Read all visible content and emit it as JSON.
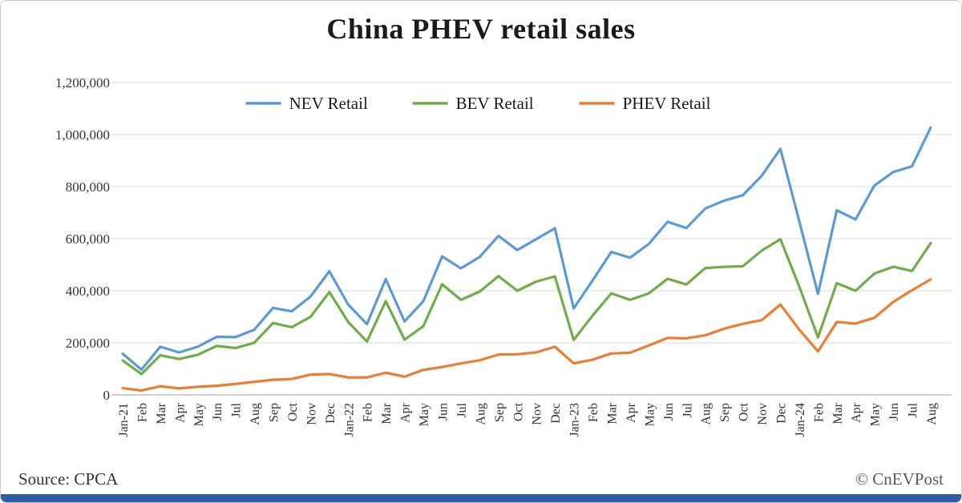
{
  "page": {
    "source": "Source: CPCA",
    "copyright": "© CnEVPost",
    "accent_bar_color": "#2a5caa"
  },
  "chart_data": {
    "type": "line",
    "title": "China PHEV retail sales",
    "xlabel": "",
    "ylabel": "",
    "ylim": [
      0,
      1200000
    ],
    "ytick_step": 200000,
    "grid": true,
    "legend_position": "top-center",
    "categories": [
      "Jan-21",
      "Feb",
      "Mar",
      "Apr",
      "May",
      "Jun",
      "Jul",
      "Aug",
      "Sep",
      "Oct",
      "Nov",
      "Dec",
      "Jan-22",
      "Feb",
      "Mar",
      "Apr",
      "May",
      "Jun",
      "Jul",
      "Aug",
      "Sep",
      "Oct",
      "Nov",
      "Dec",
      "Jan-23",
      "Feb",
      "Mar",
      "Apr",
      "May",
      "Jun",
      "Jul",
      "Aug",
      "Sep",
      "Oct",
      "Nov",
      "Dec",
      "Jan-24",
      "Feb",
      "Mar",
      "Apr",
      "May",
      "Jun",
      "Jul",
      "Aug"
    ],
    "series": [
      {
        "name": "NEV Retail",
        "color": "#5B9BD5",
        "values": [
          158000,
          97000,
          185000,
          163000,
          185000,
          223000,
          222000,
          250000,
          334000,
          321000,
          378000,
          475000,
          347000,
          272000,
          445000,
          282000,
          360000,
          532000,
          486000,
          530000,
          611000,
          556000,
          598000,
          640000,
          332000,
          439000,
          549000,
          527000,
          580000,
          665000,
          641000,
          716000,
          746000,
          767000,
          841000,
          945000,
          668000,
          388000,
          709000,
          674000,
          804000,
          856000,
          878000,
          1027000
        ]
      },
      {
        "name": "BEV Retail",
        "color": "#70AD47",
        "values": [
          132000,
          80000,
          152000,
          138000,
          154000,
          188000,
          180000,
          200000,
          276000,
          260000,
          300000,
          395000,
          280000,
          205000,
          360000,
          212000,
          264000,
          425000,
          365000,
          397000,
          456000,
          400000,
          435000,
          455000,
          211000,
          304000,
          390000,
          365000,
          390000,
          446000,
          424000,
          487000,
          492000,
          494000,
          554000,
          598000,
          417000,
          221000,
          429000,
          400000,
          466000,
          492000,
          476000,
          583000
        ]
      },
      {
        "name": "PHEV Retail",
        "color": "#ED7D31",
        "values": [
          26000,
          17000,
          33000,
          25000,
          31000,
          35000,
          42000,
          50000,
          58000,
          61000,
          78000,
          80000,
          67000,
          67000,
          85000,
          70000,
          96000,
          107000,
          121000,
          133000,
          155000,
          156000,
          163000,
          185000,
          121000,
          135000,
          159000,
          162000,
          190000,
          219000,
          217000,
          229000,
          254000,
          273000,
          287000,
          347000,
          251000,
          167000,
          280000,
          274000,
          296000,
          357000,
          402000,
          444000
        ]
      }
    ]
  }
}
